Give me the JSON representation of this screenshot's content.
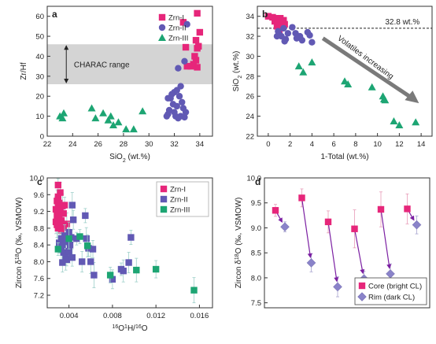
{
  "figure": {
    "panel_letters": [
      "a",
      "b",
      "c",
      "d"
    ],
    "colors": {
      "zrn1": "#e6267a",
      "zrn2": "#6159b4",
      "zrn3": "#1da573",
      "core": "#e6267a",
      "rim": "#8a83c9",
      "arrow_d": "#7b1fa2",
      "charac_band": "#d4d4d4",
      "arrow_b": "#7a7a7a"
    }
  },
  "chart_data": [
    {
      "panel": "a",
      "type": "scatter",
      "xlabel": "SiO2 (wt.%)",
      "ylabel": "Zr/Hf",
      "xlim": [
        22,
        35
      ],
      "ylim": [
        0,
        65
      ],
      "xticks": [
        22,
        24,
        26,
        28,
        30,
        32,
        34
      ],
      "yticks": [
        0,
        10,
        20,
        30,
        40,
        50,
        60
      ],
      "legend": [
        "Zrn-I",
        "Zrn-II",
        "Zrn-III"
      ],
      "legend_position": "top-right",
      "band": {
        "label": "CHARAC range",
        "y_min": 26,
        "y_max": 46
      },
      "series": [
        {
          "name": "Zrn-I",
          "marker": "square",
          "points": [
            [
              33.8,
              61.5
            ],
            [
              34.0,
              52
            ],
            [
              33.7,
              48
            ],
            [
              33.9,
              45
            ],
            [
              33.8,
              44
            ],
            [
              33.6,
              40
            ],
            [
              33.7,
              38
            ],
            [
              33.5,
              36
            ],
            [
              33.3,
              35
            ],
            [
              33.0,
              35
            ],
            [
              33.8,
              34.5
            ],
            [
              32.7,
              57
            ],
            [
              32.9,
              44.5
            ]
          ]
        },
        {
          "name": "Zrn-II",
          "marker": "circle",
          "points": [
            [
              33.0,
              56
            ],
            [
              32.8,
              37.5
            ],
            [
              32.3,
              34
            ],
            [
              32.5,
              25
            ],
            [
              32.2,
              23
            ],
            [
              32.0,
              22
            ],
            [
              31.8,
              21
            ],
            [
              32.4,
              20
            ],
            [
              31.7,
              19
            ],
            [
              31.5,
              19
            ],
            [
              32.6,
              17
            ],
            [
              31.9,
              16
            ],
            [
              32.2,
              15
            ],
            [
              32.7,
              14
            ],
            [
              31.6,
              13
            ],
            [
              32.0,
              12
            ],
            [
              32.9,
              12
            ],
            [
              31.5,
              11
            ],
            [
              31.4,
              10
            ],
            [
              32.1,
              10
            ],
            [
              32.5,
              10
            ],
            [
              32.8,
              9.5
            ],
            [
              32.3,
              9
            ]
          ]
        },
        {
          "name": "Zrn-III",
          "marker": "triangle",
          "points": [
            [
              23.0,
              10
            ],
            [
              23.3,
              11.5
            ],
            [
              23.2,
              9
            ],
            [
              25.5,
              14
            ],
            [
              25.8,
              9
            ],
            [
              26.4,
              11.5
            ],
            [
              26.8,
              8
            ],
            [
              27.0,
              10
            ],
            [
              27.2,
              5.5
            ],
            [
              27.6,
              7
            ],
            [
              28.2,
              3.5
            ],
            [
              28.8,
              3.5
            ],
            [
              29.5,
              12.5
            ]
          ]
        }
      ]
    },
    {
      "panel": "b",
      "type": "scatter",
      "xlabel": "1-Total (wt.%)",
      "ylabel": "SiO2 (wt.%)",
      "xlim": [
        -1,
        15
      ],
      "ylim": [
        22,
        35
      ],
      "xticks": [
        0,
        2,
        4,
        6,
        8,
        10,
        12,
        14
      ],
      "yticks": [
        22,
        24,
        26,
        28,
        30,
        32,
        34
      ],
      "reference_line": {
        "y": 32.8,
        "label": "32.8 wt.%"
      },
      "arrow_label": "Volatiles increasing",
      "series": [
        {
          "name": "Zrn-I",
          "marker": "square",
          "points": [
            [
              0.0,
              34.0
            ],
            [
              0.4,
              33.9
            ],
            [
              0.7,
              33.8
            ],
            [
              0.9,
              33.7
            ],
            [
              1.1,
              33.8
            ],
            [
              0.6,
              33.5
            ],
            [
              1.0,
              33.4
            ],
            [
              1.3,
              33.3
            ],
            [
              0.8,
              33.0
            ],
            [
              1.2,
              32.9
            ],
            [
              1.0,
              32.6
            ],
            [
              1.4,
              33.6
            ],
            [
              1.5,
              33.2
            ]
          ]
        },
        {
          "name": "Zrn-II",
          "marker": "circle",
          "points": [
            [
              0.9,
              32.5
            ],
            [
              1.0,
              32.2
            ],
            [
              1.2,
              32.0
            ],
            [
              1.4,
              32.8
            ],
            [
              1.6,
              31.7
            ],
            [
              1.8,
              32.3
            ],
            [
              2.2,
              32.9
            ],
            [
              2.5,
              32.3
            ],
            [
              2.6,
              31.8
            ],
            [
              2.9,
              32.0
            ],
            [
              3.1,
              31.6
            ],
            [
              3.6,
              32.4
            ],
            [
              3.8,
              32.1
            ],
            [
              4.0,
              31.4
            ],
            [
              1.5,
              31.5
            ],
            [
              0.8,
              32.0
            ]
          ]
        },
        {
          "name": "Zrn-III",
          "marker": "triangle",
          "points": [
            [
              2.8,
              29.0
            ],
            [
              3.2,
              28.4
            ],
            [
              4.0,
              29.4
            ],
            [
              7.0,
              27.5
            ],
            [
              7.3,
              27.2
            ],
            [
              9.5,
              26.9
            ],
            [
              10.5,
              26.0
            ],
            [
              10.7,
              25.6
            ],
            [
              10.6,
              25.7
            ],
            [
              11.5,
              23.5
            ],
            [
              12.0,
              23.1
            ],
            [
              13.5,
              23.4
            ]
          ]
        }
      ]
    },
    {
      "panel": "c",
      "type": "scatter",
      "xlabel": "16O1H/16O",
      "ylabel": "Zircon δ18O (‰, VSMOW)",
      "xlim": [
        0.002,
        0.0172
      ],
      "ylim": [
        6.9,
        10.0
      ],
      "xticks": [
        0.004,
        0.008,
        0.012,
        0.016
      ],
      "yticks": [
        7.2,
        7.6,
        8.0,
        8.4,
        8.8,
        9.2,
        9.6,
        10.0
      ],
      "legend": [
        "Zrn-I",
        "Zrn-II",
        "Zrn-III"
      ],
      "legend_position": "top-right",
      "series": [
        {
          "name": "Zrn-I",
          "marker": "square",
          "points": [
            [
              0.003,
              9.83
            ],
            [
              0.0032,
              9.65
            ],
            [
              0.003,
              9.55
            ],
            [
              0.0029,
              9.45
            ],
            [
              0.0031,
              9.4
            ],
            [
              0.0034,
              9.33
            ],
            [
              0.003,
              9.3
            ],
            [
              0.0028,
              9.25
            ],
            [
              0.0032,
              9.2
            ],
            [
              0.0035,
              9.15
            ],
            [
              0.0029,
              9.1
            ],
            [
              0.0031,
              9.05
            ],
            [
              0.003,
              9.0
            ],
            [
              0.0033,
              8.98
            ],
            [
              0.0028,
              8.95
            ],
            [
              0.0031,
              8.9
            ],
            [
              0.0029,
              8.88
            ],
            [
              0.0032,
              8.85
            ],
            [
              0.0035,
              8.82
            ],
            [
              0.003,
              8.8
            ],
            [
              0.0033,
              8.75
            ],
            [
              0.0038,
              8.9
            ],
            [
              0.0036,
              9.35
            ]
          ]
        },
        {
          "name": "Zrn-II",
          "marker": "square",
          "points": [
            [
              0.0033,
              8.55
            ],
            [
              0.0031,
              8.45
            ],
            [
              0.0034,
              8.4
            ],
            [
              0.0036,
              8.62
            ],
            [
              0.0038,
              8.58
            ],
            [
              0.0033,
              8.3
            ],
            [
              0.0035,
              8.22
            ],
            [
              0.0037,
              8.1
            ],
            [
              0.0034,
              7.98
            ],
            [
              0.0038,
              8.05
            ],
            [
              0.004,
              8.7
            ],
            [
              0.0042,
              8.58
            ],
            [
              0.0039,
              8.48
            ],
            [
              0.0041,
              8.4
            ],
            [
              0.004,
              8.25
            ],
            [
              0.0043,
              8.1
            ],
            [
              0.0043,
              9.35
            ],
            [
              0.0044,
              9.0
            ],
            [
              0.0047,
              8.55
            ],
            [
              0.0052,
              8.0
            ],
            [
              0.0055,
              9.1
            ],
            [
              0.0056,
              8.55
            ],
            [
              0.0058,
              8.32
            ],
            [
              0.006,
              8.0
            ],
            [
              0.0062,
              8.3
            ],
            [
              0.0063,
              7.68
            ],
            [
              0.008,
              7.58
            ],
            [
              0.0088,
              7.82
            ],
            [
              0.0095,
              7.98
            ],
            [
              0.0097,
              8.58
            ],
            [
              0.009,
              7.78
            ]
          ]
        },
        {
          "name": "Zrn-III",
          "marker": "square",
          "points": [
            [
              0.003,
              8.3
            ],
            [
              0.004,
              8.55
            ],
            [
              0.005,
              8.6
            ],
            [
              0.0057,
              8.38
            ],
            [
              0.0078,
              7.68
            ],
            [
              0.0102,
              7.8
            ],
            [
              0.012,
              7.82
            ],
            [
              0.0155,
              7.32
            ]
          ]
        }
      ]
    },
    {
      "panel": "d",
      "type": "scatter",
      "ylabel": "Zircon δ18O (‰, VSMOW)",
      "ylim": [
        7.4,
        10.0
      ],
      "yticks": [
        7.5,
        8.0,
        8.5,
        9.0,
        9.5,
        10.0
      ],
      "legend": [
        "Core (bright CL)",
        "Rim  (dark CL)"
      ],
      "legend_position": "bottom-right",
      "series": [
        {
          "name": "Core (bright CL)",
          "marker": "square",
          "values": [
            9.35,
            9.6,
            9.12,
            8.98,
            9.37,
            9.38
          ],
          "errors": [
            0.12,
            0.18,
            0.22,
            0.38,
            0.35,
            0.3
          ]
        },
        {
          "name": "Rim  (dark CL)",
          "marker": "diamond",
          "values": [
            9.02,
            8.3,
            7.82,
            7.98,
            8.08,
            9.06
          ],
          "errors": [
            0.1,
            0.18,
            0.2,
            0.15,
            0.2,
            0.18
          ]
        }
      ]
    }
  ]
}
